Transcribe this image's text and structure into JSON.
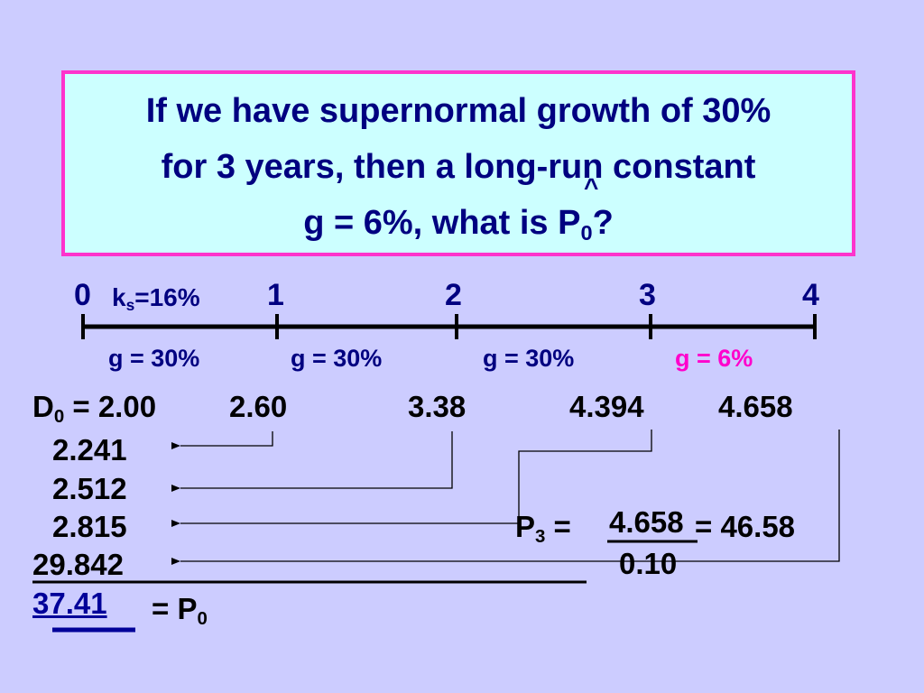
{
  "slide": {
    "title_lines": [
      "If we have supernormal growth of 30%",
      "for 3 years, then a long-run constant",
      "g = 6%, what is P"
    ],
    "title_sub": "0",
    "title_end": "?",
    "title_hat": "^"
  },
  "timeline": {
    "ticks": [
      "0",
      "1",
      "2",
      "3",
      "4"
    ],
    "rate_prefix": "k",
    "rate_sub": "s",
    "rate_value": "=16%",
    "growth": [
      "g = 30%",
      "g = 30%",
      "g = 30%",
      "g = 6%"
    ],
    "highlight_color": "#ff00cc"
  },
  "dividends": {
    "d0_label": "D",
    "d0_sub": "0",
    "d0_value": " = 2.00",
    "d1": "2.60",
    "d2": "3.38",
    "d3": "4.394",
    "d4": "4.658"
  },
  "present_values": [
    "2.241",
    "2.512",
    "2.815",
    "29.842"
  ],
  "terminal": {
    "p3_label": "P",
    "p3_sub": "3",
    "p3_eq": " =",
    "numerator": "4.658",
    "denominator": "0.10",
    "result": "= 46.58"
  },
  "total": {
    "value": "37.41",
    "eq": "= P",
    "sub": "0"
  }
}
